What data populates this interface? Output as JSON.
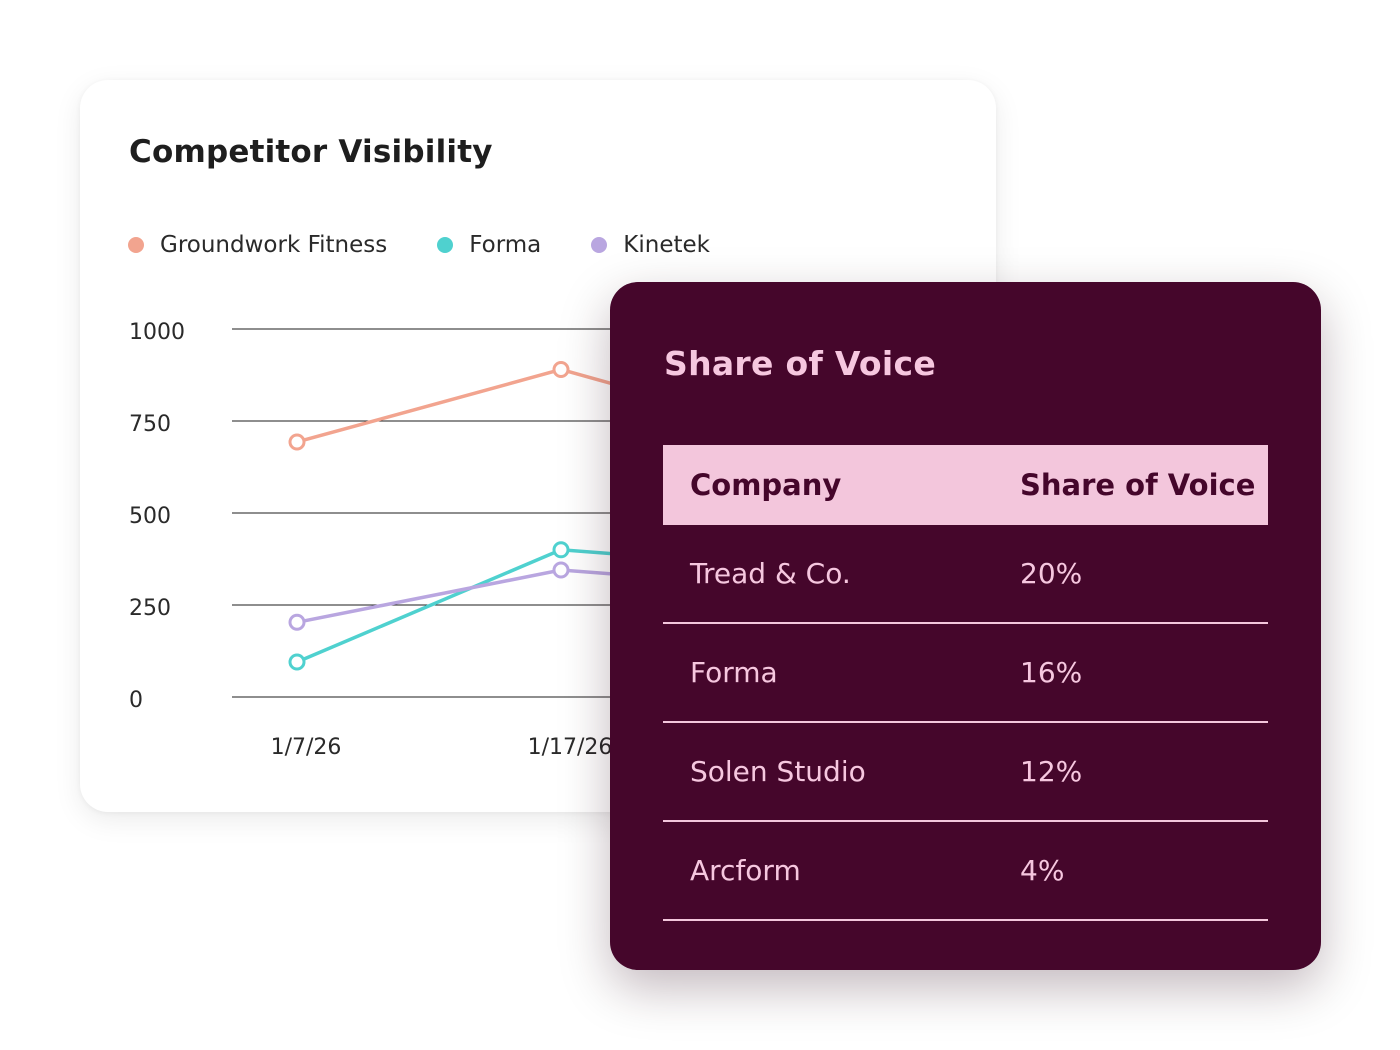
{
  "visibility_card": {
    "title": "Competitor Visibility",
    "legend": [
      {
        "label": "Groundwork Fitness",
        "color": "#f2a48f"
      },
      {
        "label": "Forma",
        "color": "#4fd1cf"
      },
      {
        "label": "Kinetek",
        "color": "#b9a6e0"
      }
    ]
  },
  "chart_data": {
    "type": "line",
    "title": "Competitor Visibility",
    "x": [
      "1/7/26",
      "1/17/26"
    ],
    "y_ticks": [
      "1000",
      "750",
      "500",
      "250",
      "0"
    ],
    "ylim": [
      0,
      1000
    ],
    "grid": true,
    "legend_position": "top-left",
    "series": [
      {
        "name": "Groundwork Fitness",
        "color": "#f2a48f",
        "values": [
          693,
          890
        ]
      },
      {
        "name": "Forma",
        "color": "#4fd1cf",
        "values": [
          95,
          400
        ]
      },
      {
        "name": "Kinetek",
        "color": "#b9a6e0",
        "values": [
          203,
          345
        ]
      }
    ]
  },
  "sov_card": {
    "title": "Share of Voice",
    "columns": [
      "Company",
      "Share of Voice"
    ],
    "rows": [
      {
        "company": "Tread & Co.",
        "share": "20%"
      },
      {
        "company": "Forma",
        "share": "16%"
      },
      {
        "company": "Solen Studio",
        "share": "12%"
      },
      {
        "company": "Arcform",
        "share": "4%"
      }
    ]
  }
}
